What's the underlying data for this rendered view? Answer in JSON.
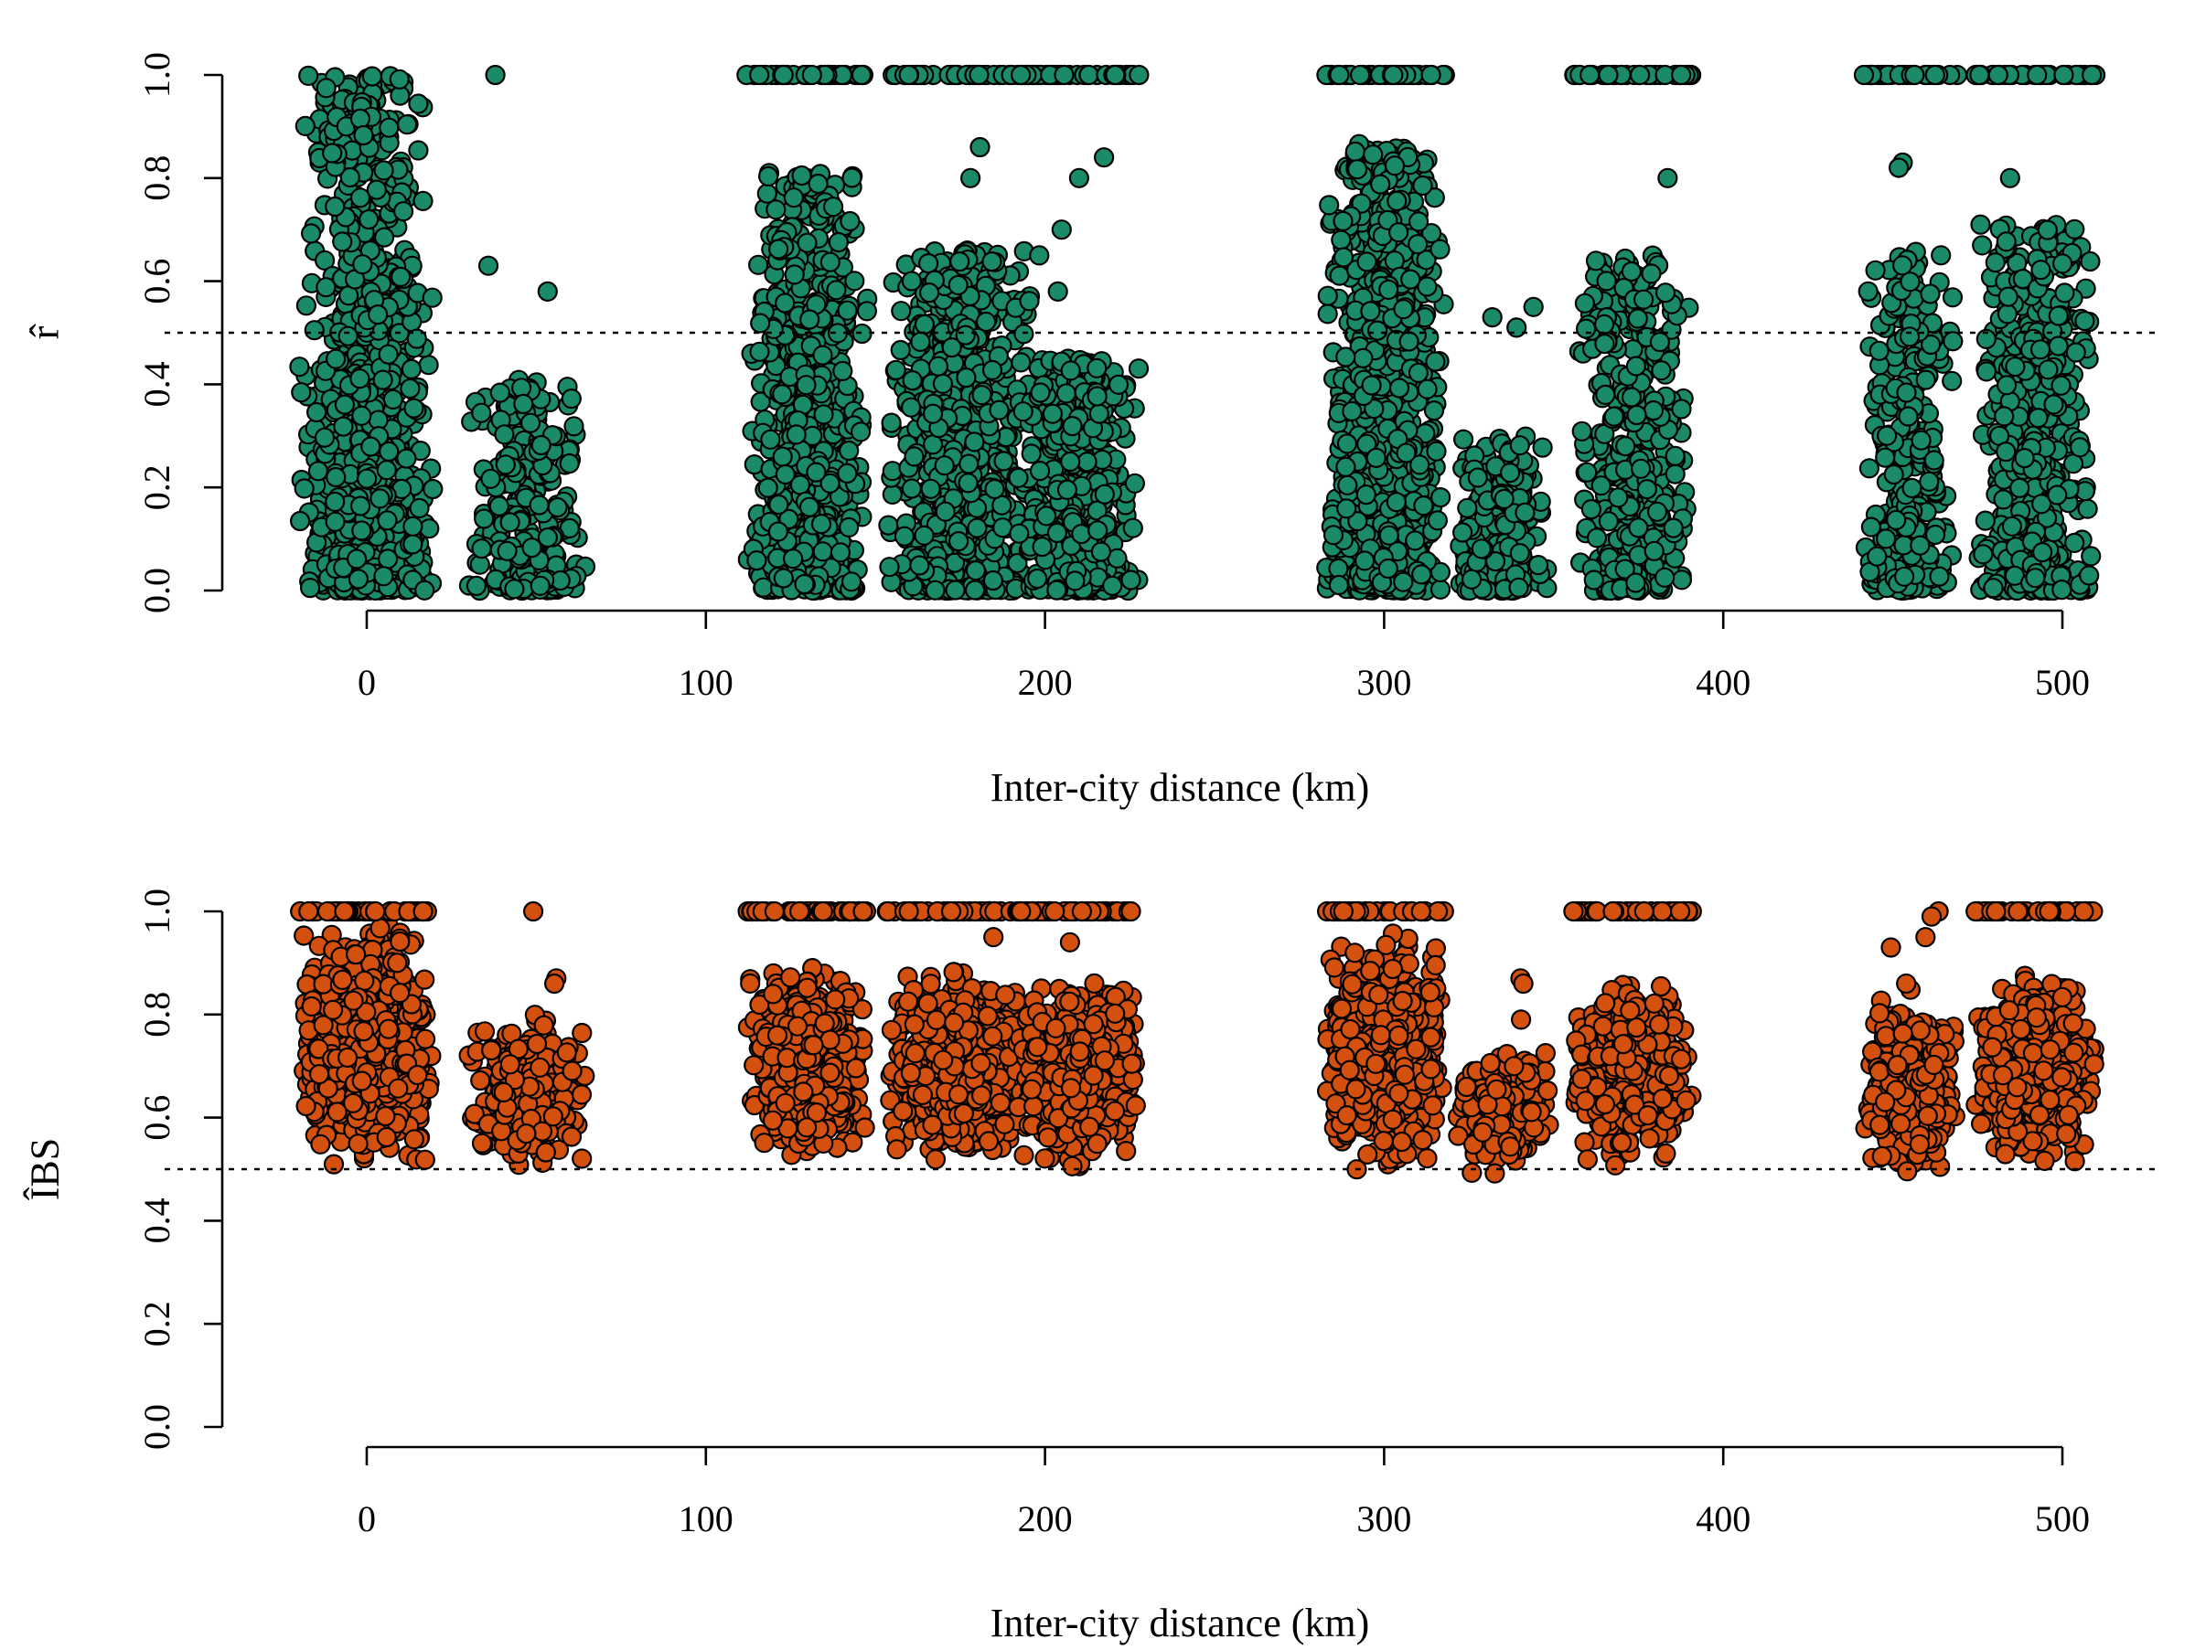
{
  "chart_data": [
    {
      "type": "scatter",
      "ylabel": "r̂",
      "xlabel": "Inter-city distance (km)",
      "xlim": [
        -45,
        525
      ],
      "ylim": [
        0,
        1
      ],
      "x_ticks": [
        "0",
        "100",
        "200",
        "300",
        "400",
        "500"
      ],
      "x_tick_values": [
        0,
        100,
        200,
        300,
        400,
        500
      ],
      "y_ticks": [
        "0.0",
        "0.2",
        "0.4",
        "0.6",
        "0.8",
        "1.0"
      ],
      "y_tick_values": [
        0,
        0.2,
        0.4,
        0.6,
        0.8,
        1.0
      ],
      "reference_line_y": 0.5,
      "point_color": "#1b8a68",
      "grid": false,
      "clusters": [
        {
          "x": 0,
          "y_range": [
            0,
            1
          ],
          "x_spread": 20,
          "n": 900
        },
        {
          "x": 47,
          "y_range": [
            0,
            0.42
          ],
          "x_spread": 18,
          "n": 300,
          "outliers": [
            1.0,
            0.63,
            0.58
          ]
        },
        {
          "x": 130,
          "y_range": [
            0,
            0.81
          ],
          "x_spread": 18,
          "n": 700,
          "top_row_y": 1.0
        },
        {
          "x": 175,
          "y_range": [
            0,
            0.66
          ],
          "x_spread": 22,
          "n": 700,
          "top_row_y": 1.0,
          "outliers": [
            0.86,
            0.8
          ]
        },
        {
          "x": 210,
          "y_range": [
            0,
            0.45
          ],
          "x_spread": 18,
          "n": 500,
          "top_row_y": 1.0,
          "outliers": [
            0.84,
            0.8,
            0.7,
            0.65,
            0.58
          ]
        },
        {
          "x": 300,
          "y_range": [
            0,
            0.87
          ],
          "x_spread": 18,
          "n": 900,
          "top_row_y": 1.0
        },
        {
          "x": 335,
          "y_range": [
            0,
            0.3
          ],
          "x_spread": 14,
          "n": 250,
          "outliers": [
            0.55,
            0.53,
            0.51
          ]
        },
        {
          "x": 373,
          "y_range": [
            0,
            0.65
          ],
          "x_spread": 18,
          "n": 400,
          "top_row_y": 1.0,
          "outliers": [
            0.8
          ]
        },
        {
          "x": 455,
          "y_range": [
            0,
            0.67
          ],
          "x_spread": 14,
          "n": 300,
          "top_row_y": 1.0,
          "outliers": [
            0.83,
            0.82
          ]
        },
        {
          "x": 492,
          "y_range": [
            0,
            0.71
          ],
          "x_spread": 18,
          "n": 600,
          "top_row_y": 1.0,
          "outliers": [
            0.8
          ]
        }
      ]
    },
    {
      "type": "scatter",
      "ylabel": "ÎBS",
      "xlabel": "Inter-city distance (km)",
      "xlim": [
        -45,
        525
      ],
      "ylim": [
        0,
        1
      ],
      "x_ticks": [
        "0",
        "100",
        "200",
        "300",
        "400",
        "500"
      ],
      "x_tick_values": [
        0,
        100,
        200,
        300,
        400,
        500
      ],
      "y_ticks": [
        "0.0",
        "0.2",
        "0.4",
        "0.6",
        "0.8",
        "1.0"
      ],
      "y_tick_values": [
        0,
        0.2,
        0.4,
        0.6,
        0.8,
        1.0
      ],
      "reference_line_y": 0.5,
      "point_color": "#d4500e",
      "grid": false,
      "clusters": [
        {
          "x": 0,
          "y_range": [
            0.48,
            1.0
          ],
          "x_spread": 20,
          "n": 900,
          "top_row_y": 1.0
        },
        {
          "x": 47,
          "y_range": [
            0.48,
            0.82
          ],
          "x_spread": 18,
          "n": 300,
          "outliers": [
            1.0,
            0.87,
            0.86
          ]
        },
        {
          "x": 130,
          "y_range": [
            0.5,
            0.92
          ],
          "x_spread": 18,
          "n": 700,
          "top_row_y": 1.0
        },
        {
          "x": 175,
          "y_range": [
            0.48,
            0.91
          ],
          "x_spread": 22,
          "n": 800,
          "top_row_y": 1.0,
          "outliers": [
            0.95
          ]
        },
        {
          "x": 210,
          "y_range": [
            0.48,
            0.9
          ],
          "x_spread": 18,
          "n": 600,
          "top_row_y": 1.0,
          "outliers": [
            0.94
          ]
        },
        {
          "x": 300,
          "y_range": [
            0.48,
            0.96
          ],
          "x_spread": 18,
          "n": 900,
          "top_row_y": 1.0
        },
        {
          "x": 335,
          "y_range": [
            0.48,
            0.75
          ],
          "x_spread": 14,
          "n": 300,
          "outliers": [
            0.87,
            0.86,
            0.79
          ]
        },
        {
          "x": 373,
          "y_range": [
            0.48,
            0.9
          ],
          "x_spread": 18,
          "n": 500,
          "top_row_y": 1.0
        },
        {
          "x": 455,
          "y_range": [
            0.47,
            0.86
          ],
          "x_spread": 14,
          "n": 400,
          "outliers": [
            1.0,
            0.99,
            0.95,
            0.93,
            0.86
          ]
        },
        {
          "x": 492,
          "y_range": [
            0.48,
            0.91
          ],
          "x_spread": 18,
          "n": 700,
          "top_row_y": 1.0
        }
      ]
    }
  ]
}
